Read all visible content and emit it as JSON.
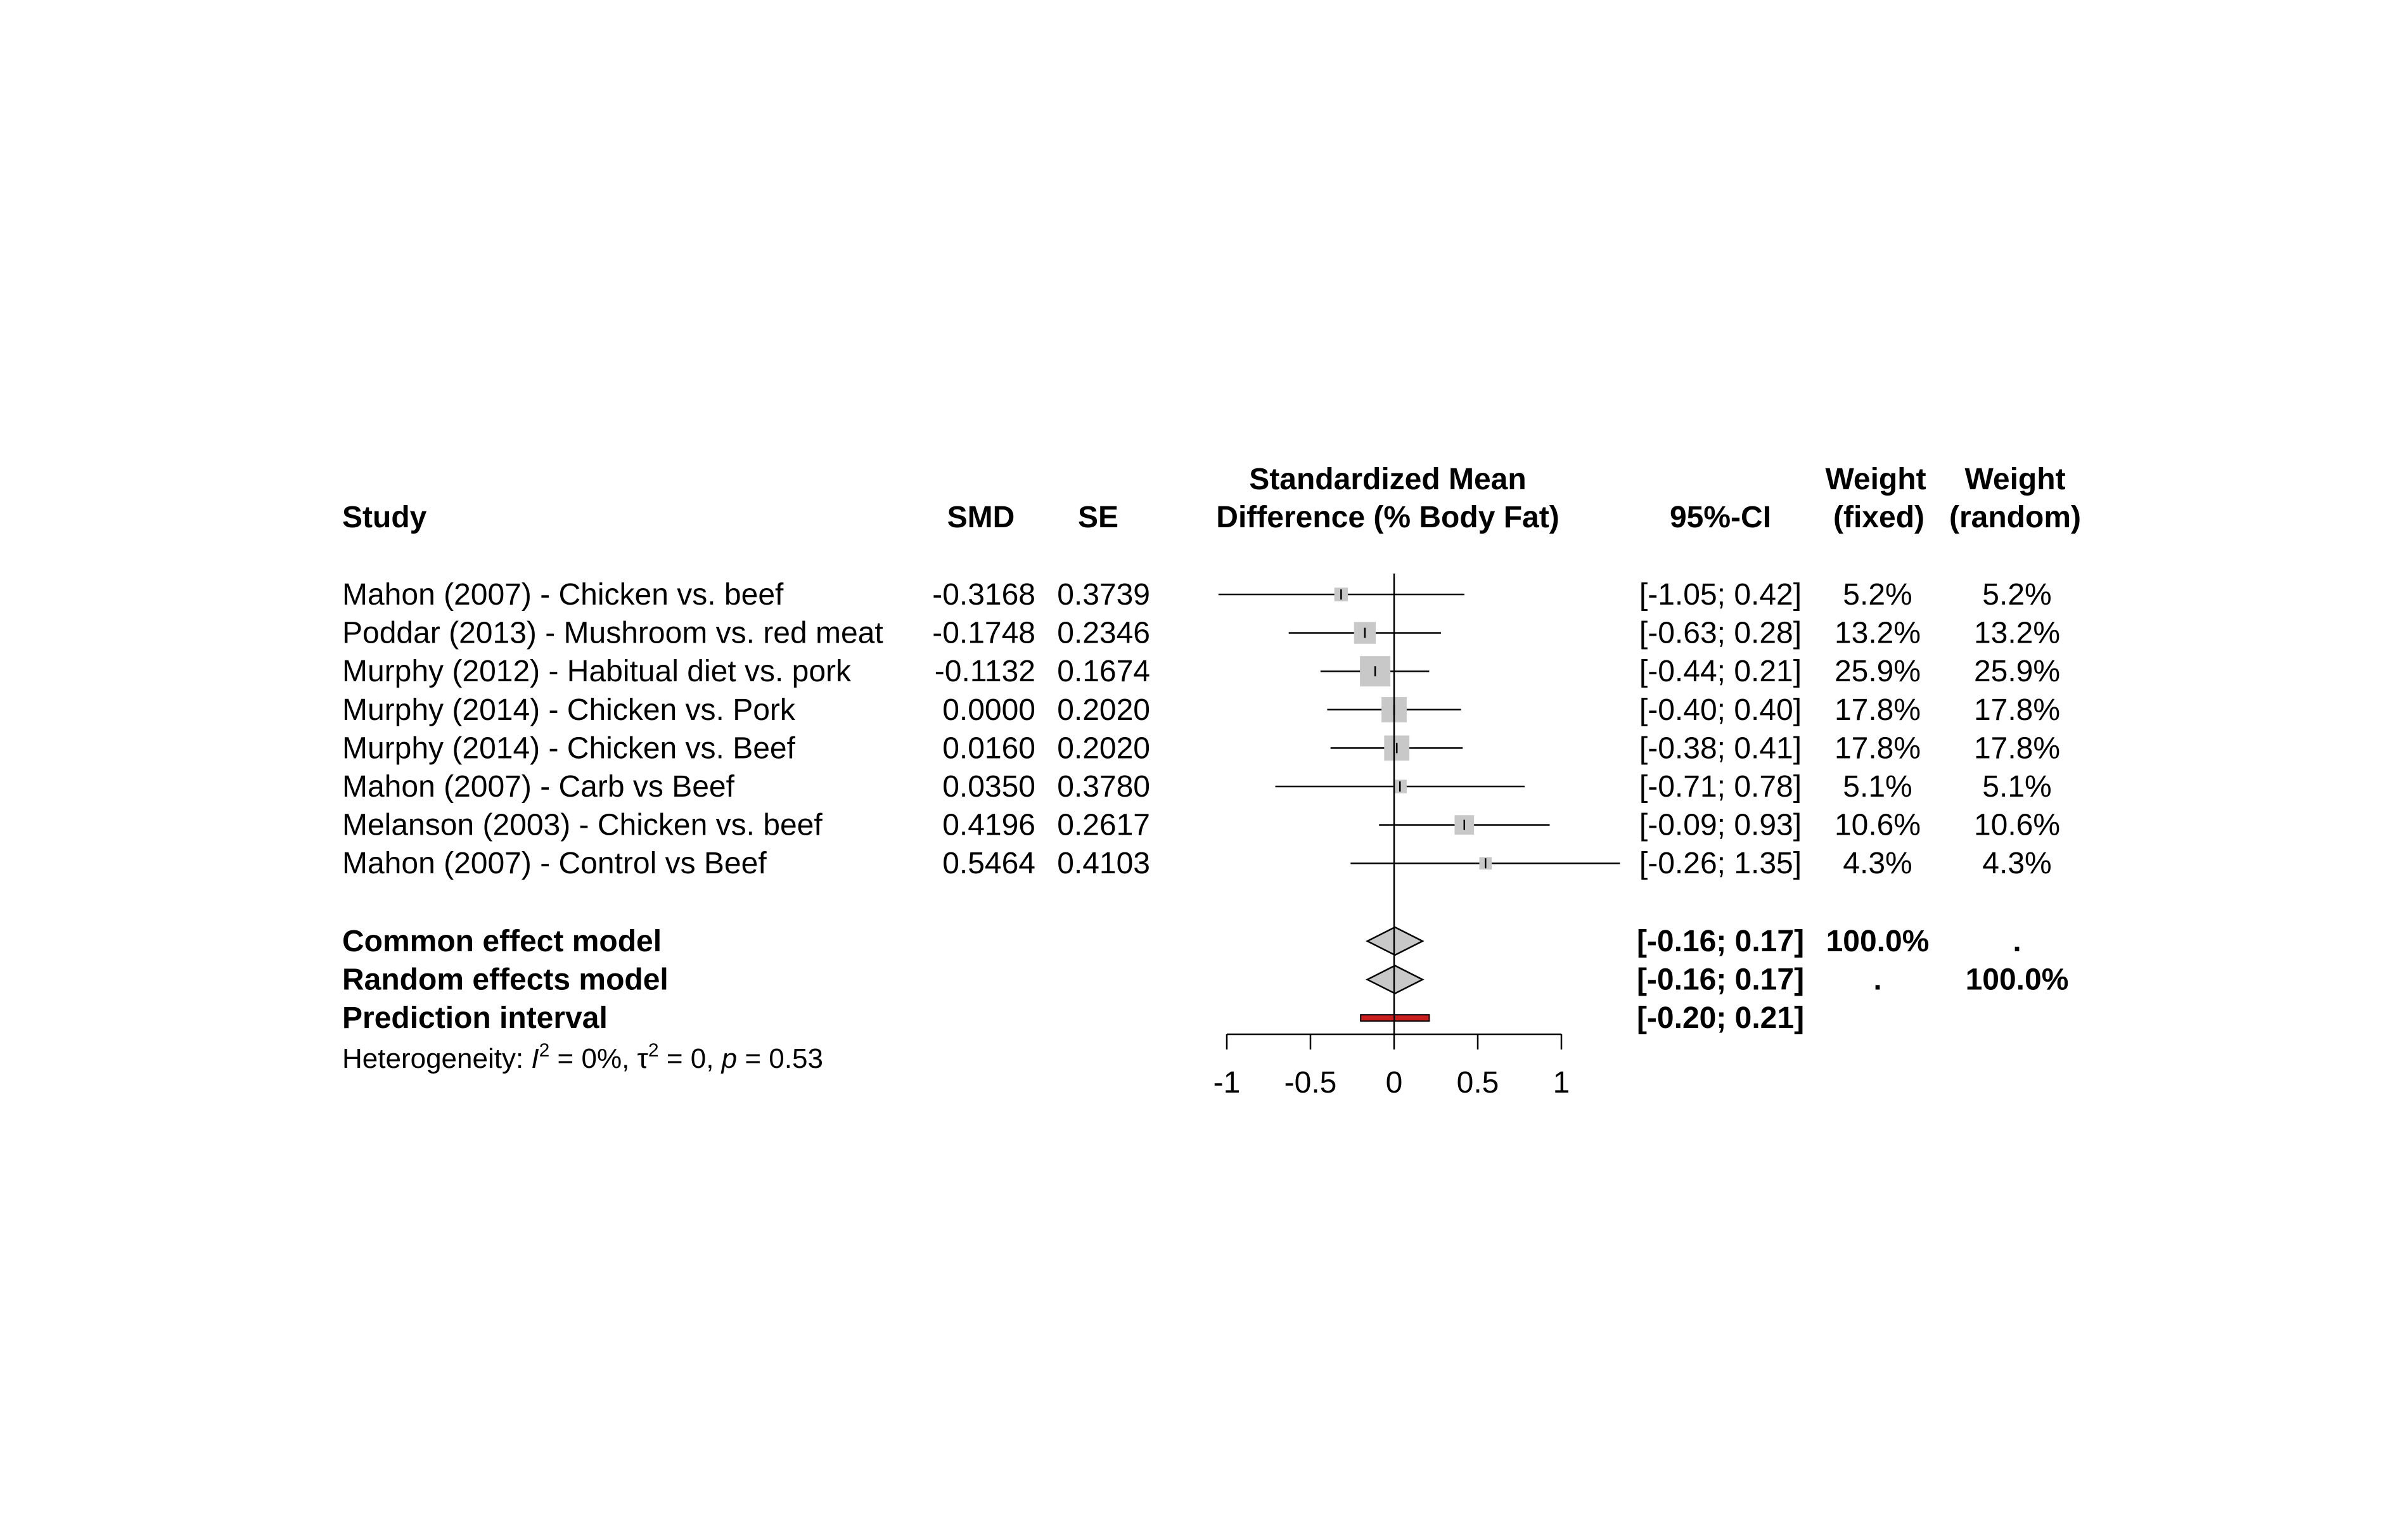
{
  "chart_data": {
    "type": "forest",
    "columns": {
      "study": "Study",
      "smd": "SMD",
      "se": "SE",
      "effect_line1": "Standardized Mean",
      "effect_line2": "Difference (% Body Fat)",
      "ci": "95%-CI",
      "wfixed_line1": "Weight",
      "wfixed_line2": "(fixed)",
      "wrandom_line1": "Weight",
      "wrandom_line2": "(random)"
    },
    "studies": [
      {
        "name": "Mahon (2007) - Chicken vs. beef",
        "smd": -0.3168,
        "se": 0.3739,
        "smd_text": "-0.3168",
        "se_text": "0.3739",
        "lower": -1.05,
        "upper": 0.42,
        "ci_text": "[-1.05; 0.42]",
        "w_fixed": "5.2%",
        "w_random": "5.2%"
      },
      {
        "name": "Poddar (2013) - Mushroom vs. red meat",
        "smd": -0.1748,
        "se": 0.2346,
        "smd_text": "-0.1748",
        "se_text": "0.2346",
        "lower": -0.63,
        "upper": 0.28,
        "ci_text": "[-0.63; 0.28]",
        "w_fixed": "13.2%",
        "w_random": "13.2%"
      },
      {
        "name": "Murphy (2012) - Habitual diet vs. pork",
        "smd": -0.1132,
        "se": 0.1674,
        "smd_text": "-0.1132",
        "se_text": "0.1674",
        "lower": -0.44,
        "upper": 0.21,
        "ci_text": "[-0.44; 0.21]",
        "w_fixed": "25.9%",
        "w_random": "25.9%"
      },
      {
        "name": "Murphy (2014) - Chicken vs. Pork",
        "smd": 0.0,
        "se": 0.202,
        "smd_text": "0.0000",
        "se_text": "0.2020",
        "lower": -0.4,
        "upper": 0.4,
        "ci_text": "[-0.40; 0.40]",
        "w_fixed": "17.8%",
        "w_random": "17.8%"
      },
      {
        "name": "Murphy (2014) - Chicken vs. Beef",
        "smd": 0.016,
        "se": 0.202,
        "smd_text": "0.0160",
        "se_text": "0.2020",
        "lower": -0.38,
        "upper": 0.41,
        "ci_text": "[-0.38; 0.41]",
        "w_fixed": "17.8%",
        "w_random": "17.8%"
      },
      {
        "name": "Mahon (2007) - Carb vs Beef",
        "smd": 0.035,
        "se": 0.378,
        "smd_text": "0.0350",
        "se_text": "0.3780",
        "lower": -0.71,
        "upper": 0.78,
        "ci_text": "[-0.71; 0.78]",
        "w_fixed": "5.1%",
        "w_random": "5.1%"
      },
      {
        "name": "Melanson (2003) - Chicken vs. beef",
        "smd": 0.4196,
        "se": 0.2617,
        "smd_text": "0.4196",
        "se_text": "0.2617",
        "lower": -0.09,
        "upper": 0.93,
        "ci_text": "[-0.09; 0.93]",
        "w_fixed": "10.6%",
        "w_random": "10.6%"
      },
      {
        "name": "Mahon (2007) - Control vs Beef",
        "smd": 0.5464,
        "se": 0.4103,
        "smd_text": "0.5464",
        "se_text": "0.4103",
        "lower": -0.26,
        "upper": 1.35,
        "ci_text": "[-0.26; 1.35]",
        "w_fixed": "4.3%",
        "w_random": "4.3%"
      }
    ],
    "summary": [
      {
        "name": "Common effect model",
        "estimate": 0.005,
        "lower": -0.16,
        "upper": 0.17,
        "ci_text": "[-0.16; 0.17]",
        "w_fixed": "100.0%",
        "w_random": "."
      },
      {
        "name": "Random effects model",
        "estimate": 0.005,
        "lower": -0.16,
        "upper": 0.17,
        "ci_text": "[-0.16; 0.17]",
        "w_fixed": ".",
        "w_random": "100.0%"
      }
    ],
    "prediction": {
      "name": "Prediction interval",
      "lower": -0.2,
      "upper": 0.21,
      "ci_text": "[-0.20; 0.21]"
    },
    "heterogeneity": {
      "prefix": "Heterogeneity: ",
      "I": "I",
      "I_sup": "2",
      "I_val": " = 0%, ",
      "tau": "τ",
      "tau_sup": "2",
      "tau_val": " = 0, ",
      "p": "p",
      "p_val": " = 0.53"
    },
    "x_axis": {
      "ticks": [
        -1,
        -0.5,
        0,
        0.5,
        1
      ],
      "tick_labels": [
        "-1",
        "-0.5",
        "0",
        "0.5",
        "1"
      ],
      "xlim": [
        -1,
        1
      ]
    },
    "colors": {
      "box": "#c8c8c8",
      "diamond": "#c8c8c8",
      "prediction": "#c81e1e",
      "line": "#000000"
    }
  }
}
